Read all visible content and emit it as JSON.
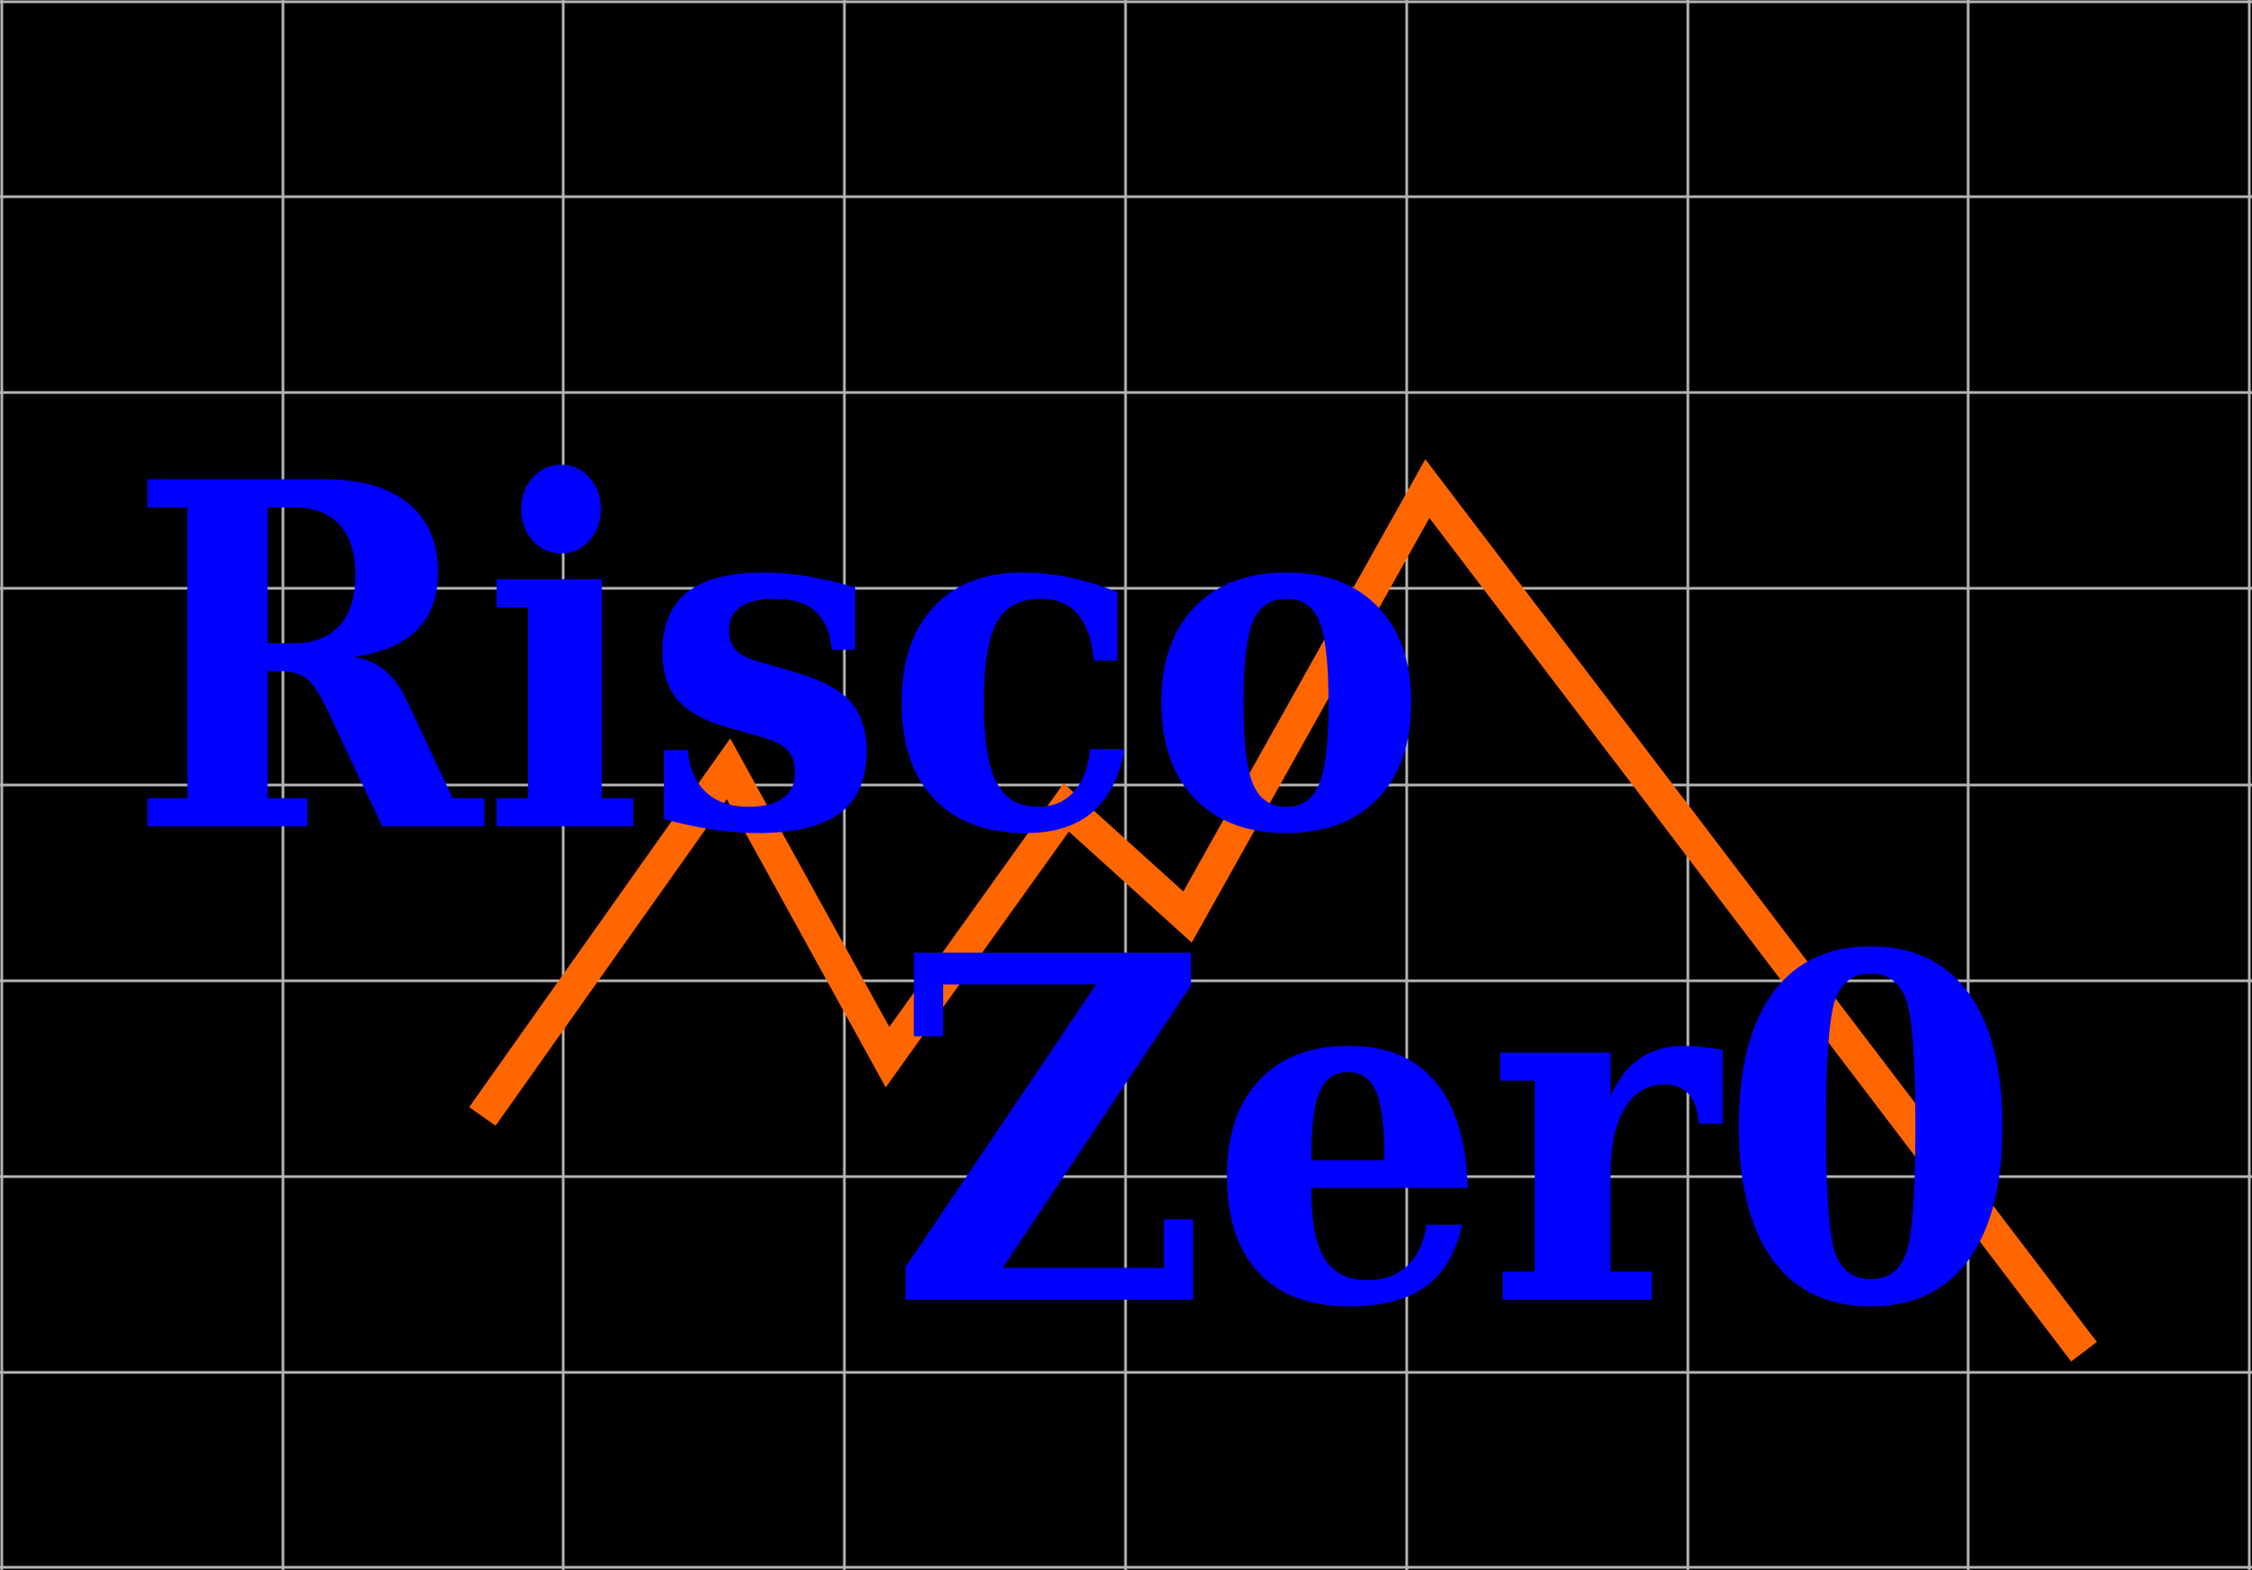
{
  "logo": {
    "word_top": "Risco",
    "word_bottom": "Zer0"
  },
  "colors": {
    "background": "#000000",
    "grid": "#b4b4b4",
    "text": "#0000ff",
    "zigzag": "#ff6600"
  }
}
